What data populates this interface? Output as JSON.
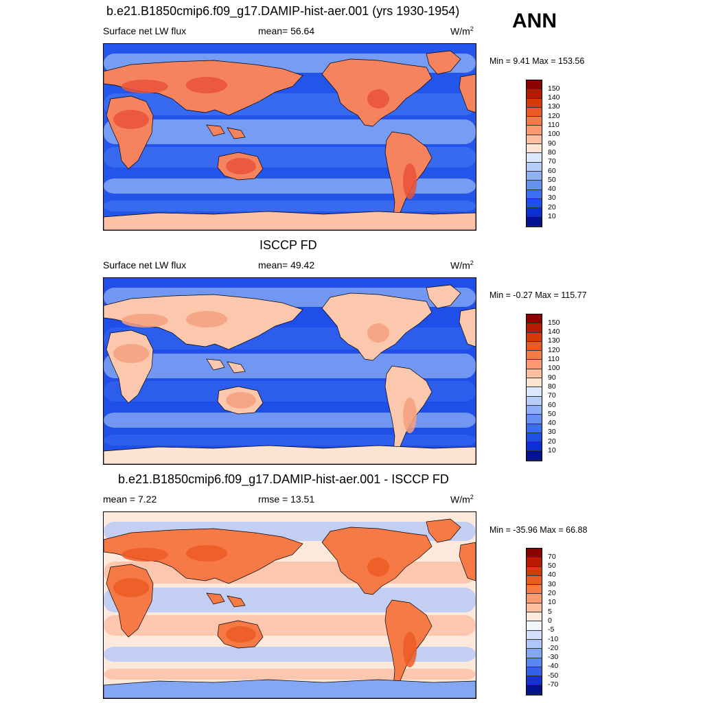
{
  "season": "ANN",
  "panels": [
    {
      "title": "b.e21.B1850cmip6.f09_g17.DAMIP-hist-aer.001 (yrs 1930-1954)",
      "left": "Surface net LW flux",
      "center": "mean=  56.64",
      "unit": "W/m",
      "unit_sup": "2",
      "minmax": "Min =   9.41 Max = 153.56",
      "type": "abs",
      "colorbar": {
        "labels": [
          "150",
          "140",
          "130",
          "120",
          "110",
          "100",
          "90",
          "80",
          "70",
          "60",
          "50",
          "40",
          "30",
          "20",
          "10"
        ],
        "colors": [
          "#8b0000",
          "#b81a00",
          "#d63a06",
          "#ec5a24",
          "#f67a46",
          "#fb9a70",
          "#fdbd9f",
          "#fde3d1",
          "#dbe8fb",
          "#b8cefa",
          "#8fb0f6",
          "#6690f1",
          "#3c6ff0",
          "#1f4ee9",
          "#0b2fd4",
          "#021390"
        ]
      },
      "map_shades": [
        [
          "#2455ea",
          "#3d72f0",
          "#93b4f7"
        ],
        [
          "#e9543a",
          "#f5835d",
          "#fcc1a6"
        ]
      ]
    },
    {
      "title": "ISCCP FD",
      "left": "Surface net LW flux",
      "center": "mean=  49.42",
      "unit": "W/m",
      "unit_sup": "2",
      "minmax": "Min =  -0.27 Max = 115.77",
      "type": "abs",
      "colorbar": {
        "labels": [
          "150",
          "140",
          "130",
          "120",
          "110",
          "100",
          "90",
          "80",
          "70",
          "60",
          "50",
          "40",
          "30",
          "20",
          "10"
        ],
        "colors": [
          "#8b0000",
          "#b81a00",
          "#d63a06",
          "#ec5a24",
          "#f67a46",
          "#fb9a70",
          "#fdbd9f",
          "#fde3d1",
          "#dbe8fb",
          "#b8cefa",
          "#8fb0f6",
          "#6690f1",
          "#3c6ff0",
          "#1f4ee9",
          "#0b2fd4",
          "#021390"
        ]
      },
      "map_shades": [
        [
          "#1f4ee9",
          "#3263ee",
          "#8fb0f6"
        ],
        [
          "#f6a07e",
          "#fbc8ad",
          "#fde3d1"
        ]
      ]
    },
    {
      "title": "b.e21.B1850cmip6.f09_g17.DAMIP-hist-aer.001 - ISCCP FD",
      "left": "mean =   7.22",
      "center": "rmse =  13.51",
      "unit": "W/m",
      "unit_sup": "2",
      "minmax": "Min = -35.96 Max =  66.88",
      "type": "diff",
      "colorbar": {
        "labels": [
          "70",
          "50",
          "40",
          "30",
          "20",
          "10",
          "5",
          "0",
          "-5",
          "-10",
          "-20",
          "-30",
          "-40",
          "-50",
          "-70"
        ],
        "colors": [
          "#8b0000",
          "#b81a00",
          "#d63a06",
          "#ec5a24",
          "#f67a46",
          "#fb9a70",
          "#fdbd9f",
          "#fde8dc",
          "#f3f5fd",
          "#d3e0fb",
          "#aec6f9",
          "#84a7f4",
          "#5a86ef",
          "#3561ea",
          "#1433d2",
          "#021390"
        ]
      },
      "map_shades": [
        [
          "#fde8dc",
          "#fbbc9f",
          "#aec6f9"
        ],
        [
          "#ec5a24",
          "#f67a46",
          "#84a7f4"
        ]
      ]
    }
  ]
}
